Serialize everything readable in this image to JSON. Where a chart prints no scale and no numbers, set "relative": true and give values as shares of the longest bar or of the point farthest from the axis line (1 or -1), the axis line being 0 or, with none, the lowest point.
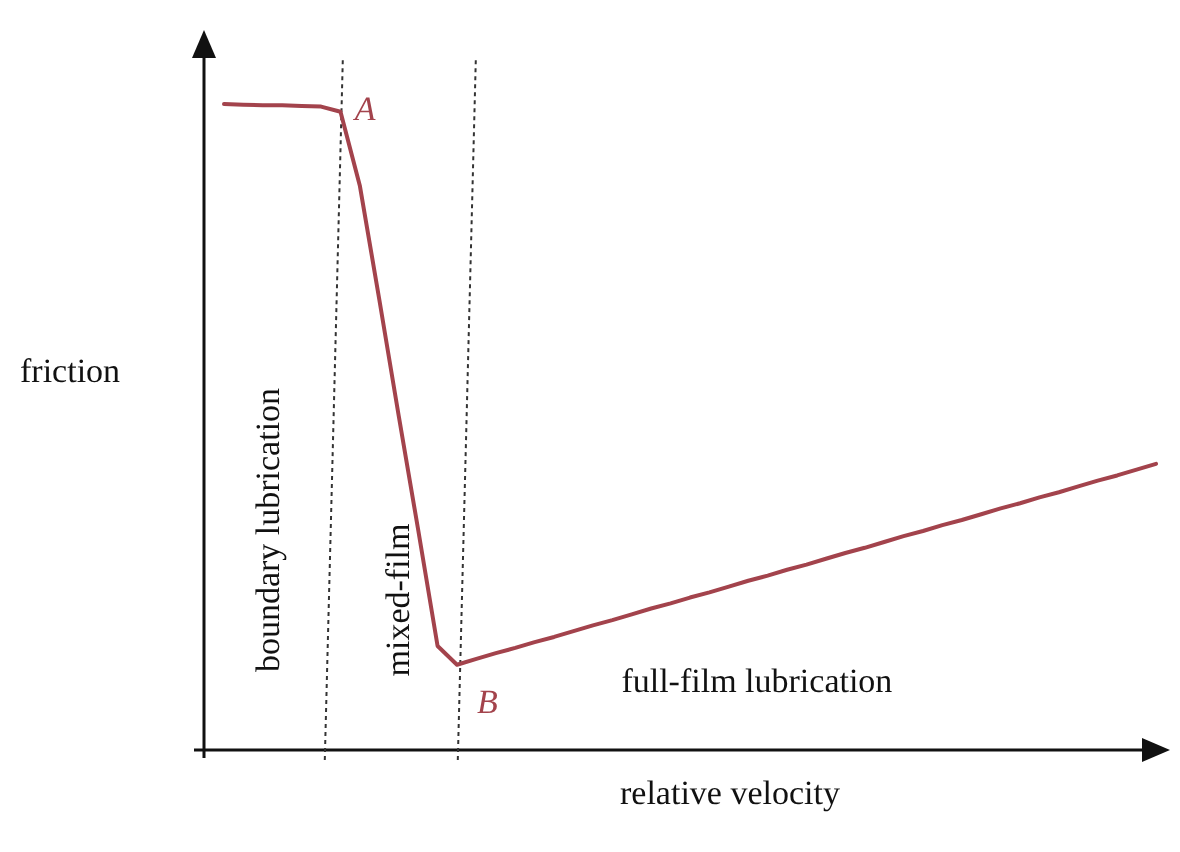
{
  "chart_data": {
    "type": "line",
    "relative": true,
    "xlabel": "relative velocity",
    "ylabel": "friction",
    "categories": [
      null,
      null,
      null,
      null,
      null,
      null,
      null,
      null,
      null,
      null,
      null,
      null,
      null,
      null,
      null,
      null,
      null,
      null,
      null,
      null,
      null,
      null,
      null,
      null,
      null,
      null,
      null,
      null,
      null,
      null,
      null,
      null,
      null,
      null,
      null,
      null,
      null,
      null,
      null,
      null,
      null,
      null,
      null,
      null,
      null,
      null,
      null,
      null,
      null
    ],
    "series": [
      {
        "color": "#a3434c",
        "values": [
          1.0,
          0.999,
          0.998,
          0.998,
          0.997,
          0.996,
          0.988,
          0.873,
          0.697,
          0.517,
          0.341,
          0.161,
          0.132,
          0.141,
          0.15,
          0.158,
          0.167,
          0.175,
          0.184,
          0.193,
          0.201,
          0.21,
          0.219,
          0.227,
          0.236,
          0.244,
          0.253,
          0.262,
          0.27,
          0.279,
          0.287,
          0.296,
          0.305,
          0.313,
          0.322,
          0.331,
          0.339,
          0.348,
          0.356,
          0.365,
          0.374,
          0.382,
          0.391,
          0.399,
          0.408,
          0.417,
          0.425,
          0.434,
          0.443
        ]
      }
    ],
    "annotations": [
      "A",
      "B",
      "boundary lubrication",
      "mixed-film",
      "full-film lubrication"
    ],
    "marker": "none",
    "line_style": "solid"
  }
}
